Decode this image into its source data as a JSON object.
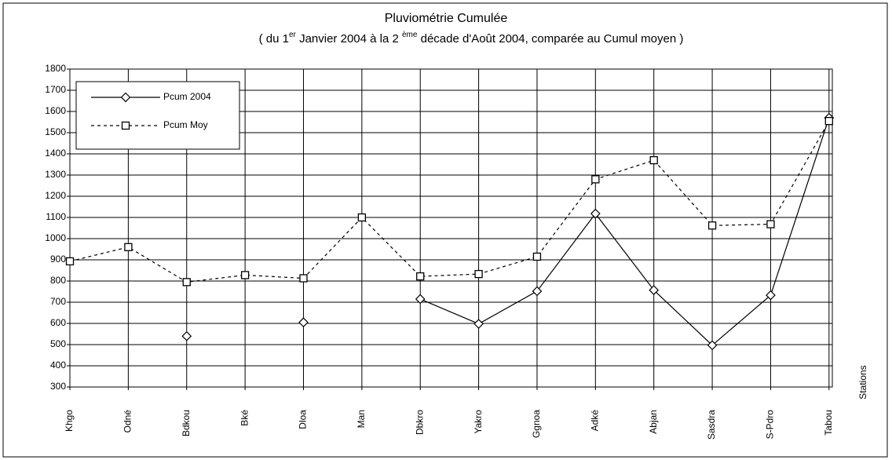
{
  "chart_data": {
    "type": "line",
    "title": "Pluviométrie Cumulée",
    "subtitle": [
      "( du 1",
      "er",
      " Janvier 2004  à  la 2 ",
      "ème",
      " décade d'Août  2004, comparée au Cumul moyen  )"
    ],
    "x_label": "Stations",
    "categories": [
      "Khgo",
      "Odné",
      "Bdkou",
      "Bké",
      "Dloa",
      "Man",
      "Dbkro",
      "Yakro",
      "Ggnoa",
      "Adké",
      "Abjan",
      "Sasdra",
      "S-Pdro",
      "Tabou"
    ],
    "series": [
      {
        "name": "Pcum 2004",
        "color": "#000000",
        "line_style": "solid",
        "marker": "diamond",
        "values": [
          null,
          null,
          540,
          null,
          605,
          null,
          715,
          598,
          752,
          1118,
          757,
          497,
          733,
          1570
        ]
      },
      {
        "name": "Pcum Moy",
        "color": "#000000",
        "line_style": "dashed",
        "marker": "square",
        "values": [
          893,
          960,
          795,
          828,
          813,
          1100,
          822,
          833,
          915,
          1280,
          1370,
          1062,
          1068,
          1555
        ]
      }
    ],
    "ylim": [
      300,
      1800
    ],
    "yticks": [
      300,
      400,
      500,
      600,
      700,
      800,
      900,
      1000,
      1100,
      1200,
      1300,
      1400,
      1500,
      1600,
      1700,
      1800
    ],
    "grid": true,
    "legend": "upper left"
  }
}
